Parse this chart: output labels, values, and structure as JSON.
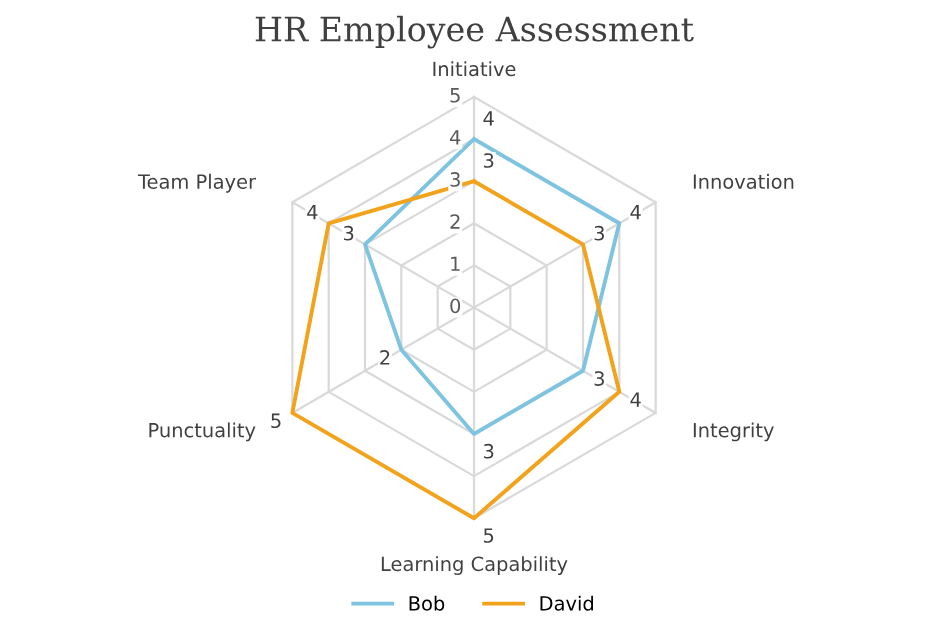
{
  "chart_data": {
    "type": "radar",
    "title": "HR Employee Assessment",
    "categories": [
      "Initiative",
      "Innovation",
      "Integrity",
      "Learning Capability",
      "Punctuality",
      "Team Player"
    ],
    "series": [
      {
        "name": "Bob",
        "color": "#7ec4e0",
        "values": [
          4,
          4,
          3,
          3,
          2,
          3
        ]
      },
      {
        "name": "David",
        "color": "#f2a31b",
        "values": [
          3,
          3,
          4,
          5,
          5,
          4
        ]
      }
    ],
    "ylim": [
      0,
      5
    ],
    "yticks": [
      0,
      1,
      2,
      3,
      4,
      5
    ],
    "grid": true,
    "data_labels": true,
    "legend": "bottom",
    "marker": "none",
    "line_style": "solid"
  }
}
